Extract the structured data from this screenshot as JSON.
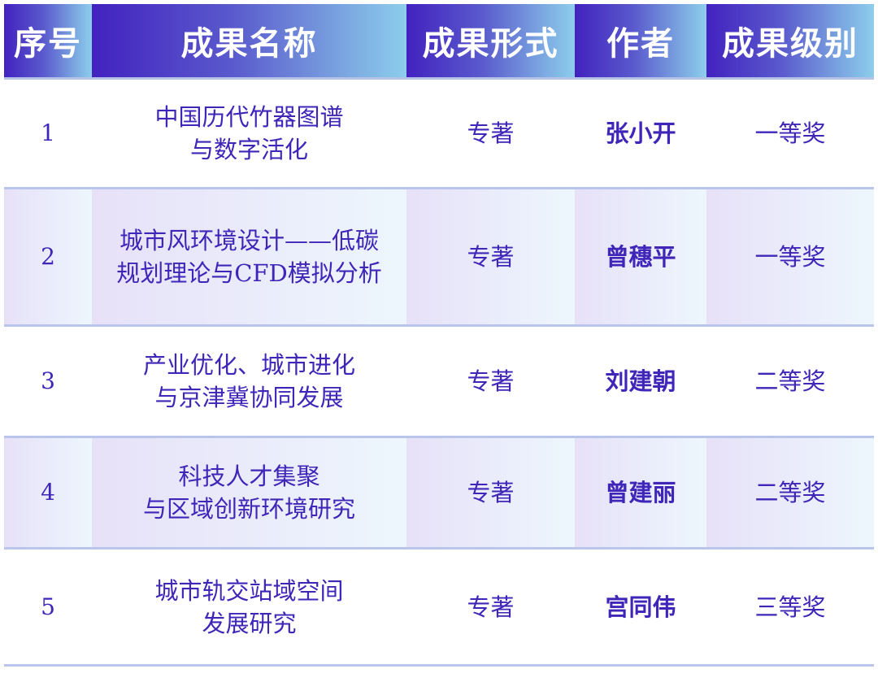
{
  "table": {
    "headers": [
      "序号",
      "成果名称",
      "成果形式",
      "作者",
      "成果级别"
    ],
    "rows": [
      {
        "no": "1",
        "title_line1": "中国历代竹器图谱",
        "title_line2": "与数字活化",
        "form": "专著",
        "author": "张小开",
        "level": "一等奖"
      },
      {
        "no": "2",
        "title_line1": "城市风环境设计——低碳",
        "title_line2": "规划理论与CFD模拟分析",
        "form": "专著",
        "author": "曾穗平",
        "level": "一等奖"
      },
      {
        "no": "3",
        "title_line1": "产业优化、城市进化",
        "title_line2": "与京津冀协同发展",
        "form": "专著",
        "author": "刘建朝",
        "level": "二等奖"
      },
      {
        "no": "4",
        "title_line1": "科技人才集聚",
        "title_line2": "与区域创新环境研究",
        "form": "专著",
        "author": "曾建丽",
        "level": "二等奖"
      },
      {
        "no": "5",
        "title_line1": "城市轨交站域空间",
        "title_line2": "发展研究",
        "form": "专著",
        "author": "宫同伟",
        "level": "三等奖"
      }
    ]
  },
  "colors": {
    "text": "#3f25b8",
    "header_start": "#4222bf",
    "header_end": "#8ccdec",
    "border": "#b9c5ea"
  }
}
